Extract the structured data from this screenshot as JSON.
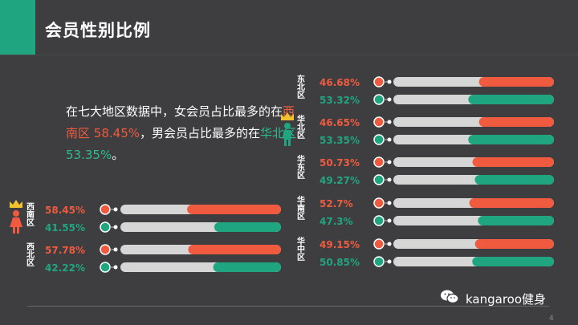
{
  "page": {
    "title": "会员性别比例",
    "summary": {
      "part1": "在七大地区数据中，女会员占比最多的在",
      "red_region": "西南区",
      "red_value": "58.45%",
      "part2": "，男会员占比最多的在",
      "green_region": "华北区",
      "green_value": "53.35%",
      "part3": "。"
    },
    "watermark": "kangaroo健身",
    "page_number": "4"
  },
  "colors": {
    "female": "#f05a3e",
    "male": "#1fa681",
    "track": "#d6d6d6",
    "accent": "#1fa681",
    "crown": "#f2c12e"
  },
  "chart_data": {
    "type": "bar",
    "series": [
      {
        "name": "",
        "color": "#f05a3e"
      },
      {
        "name": "",
        "color": "#1fa681"
      }
    ],
    "regions": [
      {
        "name": "东北区",
        "female": 46.68,
        "male": 53.32,
        "female_label": "46.68%",
        "male_label": "53.32%",
        "icon": ""
      },
      {
        "name": "华北区",
        "female": 46.65,
        "male": 53.35,
        "female_label": "46.65%",
        "male_label": "53.35%",
        "icon": "crown-male-icon"
      },
      {
        "name": "华东区",
        "female": 50.73,
        "male": 49.27,
        "female_label": "50.73%",
        "male_label": "49.27%",
        "icon": ""
      },
      {
        "name": "华南区",
        "female": 52.7,
        "male": 47.3,
        "female_label": "52.7%",
        "male_label": "47.3%",
        "icon": ""
      },
      {
        "name": "华中区",
        "female": 49.15,
        "male": 50.85,
        "female_label": "49.15%",
        "male_label": "50.85%",
        "icon": ""
      },
      {
        "name": "西南区",
        "female": 58.45,
        "male": 41.55,
        "female_label": "58.45%",
        "male_label": "41.55%",
        "icon": "crown-female-icon"
      },
      {
        "name": "西北区",
        "female": 57.78,
        "male": 42.22,
        "female_label": "57.78%",
        "male_label": "42.22%",
        "icon": ""
      }
    ]
  }
}
